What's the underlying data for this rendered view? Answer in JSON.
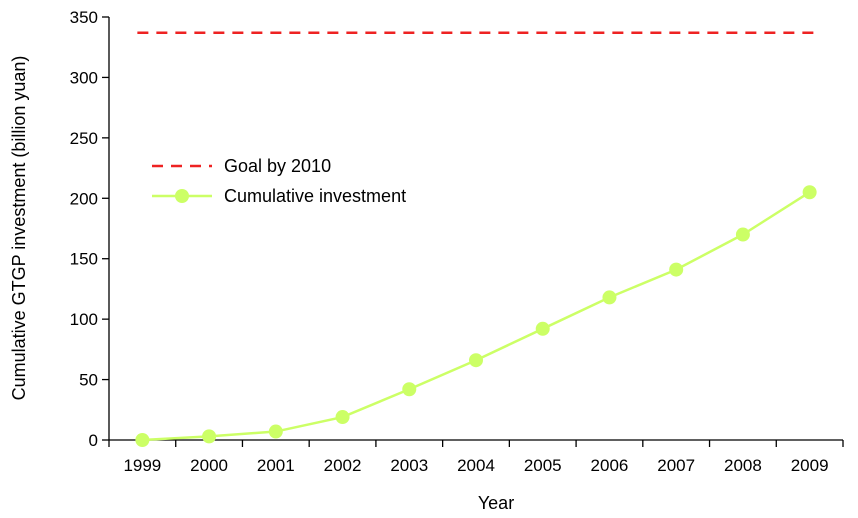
{
  "chart_data": {
    "type": "line",
    "title": "",
    "xlabel": "Year",
    "ylabel": "Cumulative GTGP investment (billion yuan)",
    "ylim": [
      0,
      350
    ],
    "y_ticks": [
      0,
      50,
      100,
      150,
      200,
      250,
      300,
      350
    ],
    "categories": [
      "1999",
      "2000",
      "2001",
      "2002",
      "2003",
      "2004",
      "2005",
      "2006",
      "2007",
      "2008",
      "2009"
    ],
    "grid": false,
    "legend_position": "middle-left",
    "series": [
      {
        "name": "Cumulative investment",
        "style": "line-with-markers",
        "color": "#ccff66",
        "values": [
          0,
          3,
          7,
          19,
          42,
          66,
          92,
          118,
          141,
          170,
          205
        ]
      }
    ],
    "reference_lines": [
      {
        "name": "Goal by 2010",
        "style": "dashed",
        "color": "#ee2222",
        "value": 337
      }
    ]
  }
}
